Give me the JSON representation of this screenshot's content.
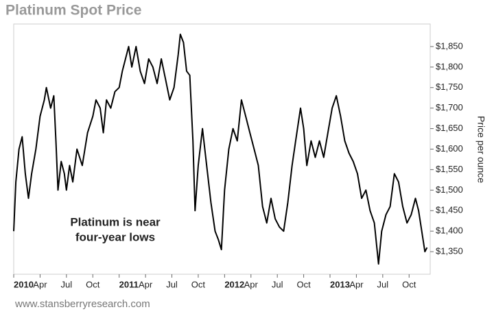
{
  "chart_data": {
    "type": "line",
    "title": "Platinum Spot Price",
    "y_label": "Price per ounce",
    "annotation": [
      "Platinum is near",
      "four-year lows"
    ],
    "source": "www.stansberryresearch.com",
    "y_axis_side": "right",
    "grid": false,
    "xlim": [
      2010,
      2013.95
    ],
    "ylim": [
      1295,
      1905
    ],
    "xticks": [
      {
        "value": 2010,
        "label": "2010"
      },
      {
        "value": 2010.25,
        "label": "Apr"
      },
      {
        "value": 2010.5,
        "label": "Jul"
      },
      {
        "value": 2010.75,
        "label": "Oct"
      },
      {
        "value": 2011,
        "label": "2011"
      },
      {
        "value": 2011.25,
        "label": "Apr"
      },
      {
        "value": 2011.5,
        "label": "Jul"
      },
      {
        "value": 2011.75,
        "label": "Oct"
      },
      {
        "value": 2012,
        "label": "2012"
      },
      {
        "value": 2012.25,
        "label": "Apr"
      },
      {
        "value": 2012.5,
        "label": "Jul"
      },
      {
        "value": 2012.75,
        "label": "Oct"
      },
      {
        "value": 2013,
        "label": "2013"
      },
      {
        "value": 2013.25,
        "label": "Apr"
      },
      {
        "value": 2013.5,
        "label": "Jul"
      },
      {
        "value": 2013.75,
        "label": "Oct"
      }
    ],
    "yticks": [
      {
        "value": 1350,
        "label": "$1,350"
      },
      {
        "value": 1400,
        "label": "$1,400"
      },
      {
        "value": 1450,
        "label": "$1,450"
      },
      {
        "value": 1500,
        "label": "$1,500"
      },
      {
        "value": 1550,
        "label": "$1,550"
      },
      {
        "value": 1600,
        "label": "$1,600"
      },
      {
        "value": 1650,
        "label": "$1,650"
      },
      {
        "value": 1700,
        "label": "$1,700"
      },
      {
        "value": 1750,
        "label": "$1,750"
      },
      {
        "value": 1800,
        "label": "$1,800"
      },
      {
        "value": 1850,
        "label": "$1,850"
      }
    ],
    "x": [
      2010.0,
      2010.02,
      2010.05,
      2010.08,
      2010.11,
      2010.14,
      2010.17,
      2010.21,
      2010.25,
      2010.29,
      2010.31,
      2010.35,
      2010.38,
      2010.4,
      2010.42,
      2010.45,
      2010.48,
      2010.5,
      2010.53,
      2010.56,
      2010.6,
      2010.65,
      2010.7,
      2010.75,
      2010.78,
      2010.82,
      2010.85,
      2010.88,
      2010.92,
      2010.96,
      2011.0,
      2011.03,
      2011.06,
      2011.09,
      2011.12,
      2011.16,
      2011.2,
      2011.24,
      2011.28,
      2011.32,
      2011.36,
      2011.4,
      2011.44,
      2011.48,
      2011.52,
      2011.56,
      2011.58,
      2011.61,
      2011.64,
      2011.67,
      2011.7,
      2011.72,
      2011.75,
      2011.79,
      2011.83,
      2011.87,
      2011.91,
      2011.94,
      2011.97,
      2012.0,
      2012.04,
      2012.08,
      2012.12,
      2012.16,
      2012.2,
      2012.24,
      2012.28,
      2012.32,
      2012.36,
      2012.4,
      2012.44,
      2012.48,
      2012.52,
      2012.56,
      2012.6,
      2012.64,
      2012.68,
      2012.72,
      2012.75,
      2012.78,
      2012.82,
      2012.86,
      2012.9,
      2012.94,
      2012.98,
      2013.02,
      2013.06,
      2013.1,
      2013.14,
      2013.18,
      2013.22,
      2013.26,
      2013.3,
      2013.34,
      2013.38,
      2013.42,
      2013.46,
      2013.49,
      2013.53,
      2013.57,
      2013.61,
      2013.65,
      2013.69,
      2013.73,
      2013.77,
      2013.81,
      2013.84,
      2013.87,
      2013.9,
      2013.92
    ],
    "series": [
      {
        "name": "Platinum",
        "color": "#000000",
        "values": [
          1400,
          1520,
          1600,
          1630,
          1540,
          1480,
          1540,
          1600,
          1680,
          1720,
          1750,
          1700,
          1730,
          1620,
          1500,
          1570,
          1540,
          1500,
          1560,
          1520,
          1600,
          1560,
          1640,
          1680,
          1720,
          1700,
          1640,
          1720,
          1700,
          1740,
          1750,
          1790,
          1820,
          1850,
          1800,
          1850,
          1790,
          1760,
          1820,
          1800,
          1760,
          1820,
          1770,
          1720,
          1750,
          1830,
          1880,
          1860,
          1790,
          1780,
          1620,
          1450,
          1560,
          1650,
          1560,
          1470,
          1400,
          1380,
          1355,
          1500,
          1600,
          1650,
          1620,
          1720,
          1680,
          1640,
          1600,
          1560,
          1460,
          1420,
          1480,
          1430,
          1410,
          1400,
          1470,
          1560,
          1630,
          1700,
          1650,
          1560,
          1620,
          1580,
          1620,
          1580,
          1640,
          1700,
          1730,
          1680,
          1620,
          1590,
          1570,
          1540,
          1480,
          1500,
          1450,
          1420,
          1320,
          1400,
          1440,
          1460,
          1540,
          1520,
          1460,
          1420,
          1440,
          1480,
          1450,
          1400,
          1350,
          1360
        ]
      }
    ]
  }
}
